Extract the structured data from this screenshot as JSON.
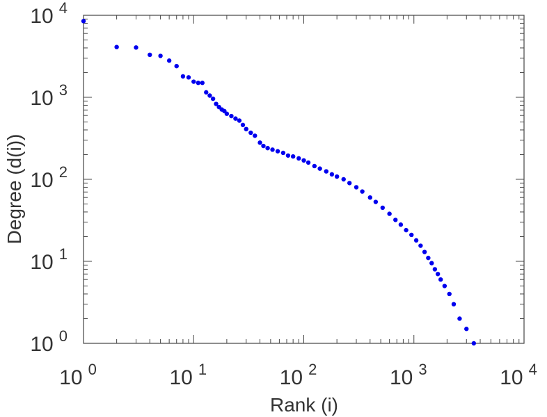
{
  "chart_data": {
    "type": "scatter",
    "title": "",
    "xlabel": "Rank (i)",
    "ylabel": "Degree (d(i))",
    "xscale": "log",
    "yscale": "log",
    "xlim": [
      1,
      10000
    ],
    "ylim": [
      1,
      10000
    ],
    "grid": false,
    "legend": "none",
    "marker_color": "#0000ee",
    "x_ticks": [
      {
        "value": 1,
        "base": "10",
        "exp": "0"
      },
      {
        "value": 10,
        "base": "10",
        "exp": "1"
      },
      {
        "value": 100,
        "base": "10",
        "exp": "2"
      },
      {
        "value": 1000,
        "base": "10",
        "exp": "3"
      },
      {
        "value": 10000,
        "base": "10",
        "exp": "4"
      }
    ],
    "y_ticks": [
      {
        "value": 1,
        "base": "10",
        "exp": "0"
      },
      {
        "value": 10,
        "base": "10",
        "exp": "1"
      },
      {
        "value": 100,
        "base": "10",
        "exp": "2"
      },
      {
        "value": 1000,
        "base": "10",
        "exp": "3"
      },
      {
        "value": 10000,
        "base": "10",
        "exp": "4"
      }
    ],
    "series": [
      {
        "points": [
          [
            1,
            8500
          ],
          [
            2,
            4100
          ],
          [
            3,
            4050
          ],
          [
            4,
            3300
          ],
          [
            5,
            3200
          ],
          [
            6,
            2800
          ],
          [
            7,
            2400
          ],
          [
            8,
            1800
          ],
          [
            9,
            1750
          ],
          [
            10,
            1550
          ],
          [
            11,
            1500
          ],
          [
            12,
            1500
          ],
          [
            13,
            1150
          ],
          [
            14,
            1050
          ],
          [
            15,
            960
          ],
          [
            16,
            830
          ],
          [
            17,
            760
          ],
          [
            18,
            710
          ],
          [
            19,
            680
          ],
          [
            20,
            630
          ],
          [
            22,
            590
          ],
          [
            24,
            550
          ],
          [
            26,
            520
          ],
          [
            28,
            460
          ],
          [
            30,
            410
          ],
          [
            33,
            370
          ],
          [
            36,
            340
          ],
          [
            40,
            280
          ],
          [
            43,
            255
          ],
          [
            47,
            240
          ],
          [
            52,
            230
          ],
          [
            58,
            220
          ],
          [
            65,
            210
          ],
          [
            72,
            195
          ],
          [
            80,
            190
          ],
          [
            90,
            180
          ],
          [
            100,
            170
          ],
          [
            110,
            160
          ],
          [
            125,
            145
          ],
          [
            140,
            135
          ],
          [
            160,
            125
          ],
          [
            180,
            115
          ],
          [
            200,
            108
          ],
          [
            230,
            100
          ],
          [
            260,
            90
          ],
          [
            300,
            80
          ],
          [
            340,
            71
          ],
          [
            400,
            60
          ],
          [
            450,
            53
          ],
          [
            520,
            45
          ],
          [
            600,
            38
          ],
          [
            680,
            32
          ],
          [
            760,
            28
          ],
          [
            850,
            24
          ],
          [
            950,
            21
          ],
          [
            1050,
            18
          ],
          [
            1150,
            15.5
          ],
          [
            1250,
            13
          ],
          [
            1350,
            11
          ],
          [
            1450,
            9.5
          ],
          [
            1550,
            8
          ],
          [
            1650,
            7
          ],
          [
            1750,
            6
          ],
          [
            1900,
            5
          ],
          [
            2100,
            4
          ],
          [
            2300,
            3
          ],
          [
            2600,
            2
          ],
          [
            3000,
            1.5
          ],
          [
            3500,
            1
          ]
        ]
      }
    ]
  }
}
